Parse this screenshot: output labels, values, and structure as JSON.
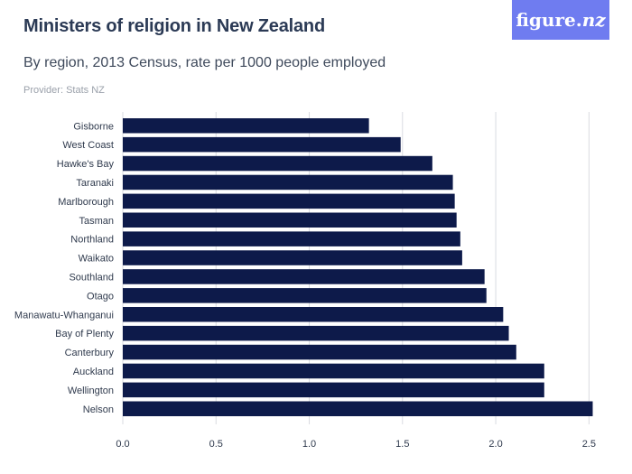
{
  "header": {
    "title": "Ministers of religion in New Zealand",
    "subtitle": "By region, 2013 Census, rate per 1000 people employed",
    "provider": "Provider: Stats NZ",
    "logo_main": "figure.",
    "logo_suffix": "nz"
  },
  "colors": {
    "bar": "#0d1a4a",
    "grid": "#d9dbe0",
    "logo_bg": "#6f7cf0"
  },
  "chart_data": {
    "type": "bar",
    "orientation": "horizontal",
    "categories": [
      "Gisborne",
      "West Coast",
      "Hawke's Bay",
      "Taranaki",
      "Marlborough",
      "Tasman",
      "Northland",
      "Waikato",
      "Southland",
      "Otago",
      "Manawatu-Whanganui",
      "Bay of Plenty",
      "Canterbury",
      "Auckland",
      "Wellington",
      "Nelson"
    ],
    "values": [
      1.32,
      1.49,
      1.66,
      1.77,
      1.78,
      1.79,
      1.81,
      1.82,
      1.94,
      1.95,
      2.04,
      2.07,
      2.11,
      2.26,
      2.26,
      2.52
    ],
    "xlim": [
      0,
      2.6
    ],
    "xticks": [
      "0.0",
      "0.5",
      "1.0",
      "1.5",
      "2.0",
      "2.5"
    ],
    "xtick_values": [
      0,
      0.5,
      1.0,
      1.5,
      2.0,
      2.5
    ],
    "grid": true
  }
}
